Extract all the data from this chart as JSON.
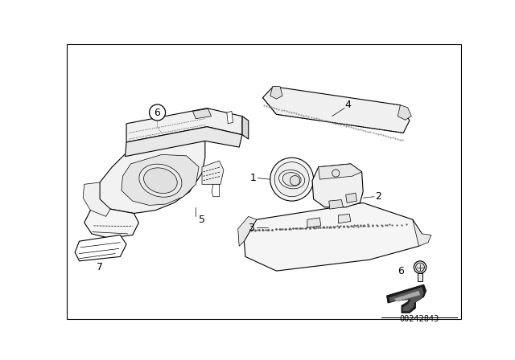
{
  "background_color": "#ffffff",
  "border_color": "#000000",
  "diagram_id": "00242843",
  "figsize": [
    6.4,
    4.48
  ],
  "dpi": 100,
  "ec": "#000000",
  "lw_main": 0.8,
  "lw_thin": 0.5,
  "fc_white": "#ffffff",
  "fc_light": "#f5f5f5",
  "fc_part4_top": "#e0e0e0",
  "label_fs": 9,
  "label_color": "#000000"
}
